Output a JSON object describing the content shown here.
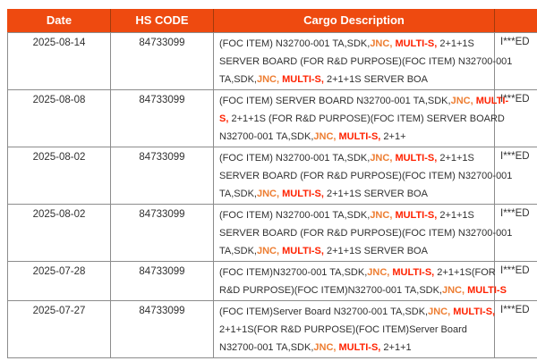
{
  "colors": {
    "header_bg": "#EE4A10",
    "header_text": "#FFFFFF",
    "header_separator": "#A23A0C",
    "border": "#8C8C8C",
    "body_text": "#303030",
    "highlight_orange": "#ED7D31",
    "highlight_red": "#FF2200"
  },
  "header": {
    "columns": [
      {
        "label": "Date"
      },
      {
        "label": "HS CODE"
      },
      {
        "label": "Cargo Description"
      },
      {
        "label": ""
      }
    ]
  },
  "rows": [
    {
      "date": "2025-08-14",
      "hs_code": "84733099",
      "description_lines": [
        [
          {
            "t": "(FOC ITEM) N32700-001 TA,SDK,",
            "c": "default"
          },
          {
            "t": "JNC,",
            "c": "orange"
          },
          {
            "t": " ",
            "c": "default"
          },
          {
            "t": "MULTI-S,",
            "c": "red"
          },
          {
            "t": " 2+1+1S",
            "c": "default"
          }
        ],
        [
          {
            "t": "SERVER BOARD (FOR R&D PURPOSE)(FOC ITEM) N32700-001",
            "c": "default"
          }
        ],
        [
          {
            "t": "TA,SDK,",
            "c": "default"
          },
          {
            "t": "JNC,",
            "c": "orange"
          },
          {
            "t": " ",
            "c": "default"
          },
          {
            "t": "MULTI-S,",
            "c": "red"
          },
          {
            "t": " 2+1+1S SERVER BOA",
            "c": "default"
          }
        ]
      ],
      "col4": "I***ED"
    },
    {
      "date": "2025-08-08",
      "hs_code": "84733099",
      "description_lines": [
        [
          {
            "t": "(FOC ITEM) SERVER BOARD N32700-001 TA,SDK,",
            "c": "default"
          },
          {
            "t": "JNC,",
            "c": "orange"
          },
          {
            "t": " ",
            "c": "default"
          },
          {
            "t": "MULTI-",
            "c": "red"
          }
        ],
        [
          {
            "t": "S,",
            "c": "red"
          },
          {
            "t": " 2+1+1S (FOR R&D PURPOSE)(FOC ITEM) SERVER BOARD",
            "c": "default"
          }
        ],
        [
          {
            "t": "N32700-001 TA,SDK,",
            "c": "default"
          },
          {
            "t": "JNC,",
            "c": "orange"
          },
          {
            "t": " ",
            "c": "default"
          },
          {
            "t": "MULTI-S,",
            "c": "red"
          },
          {
            "t": " 2+1+",
            "c": "default"
          }
        ]
      ],
      "col4": "I***ED"
    },
    {
      "date": "2025-08-02",
      "hs_code": "84733099",
      "description_lines": [
        [
          {
            "t": "(FOC ITEM) N32700-001 TA,SDK,",
            "c": "default"
          },
          {
            "t": "JNC,",
            "c": "orange"
          },
          {
            "t": " ",
            "c": "default"
          },
          {
            "t": "MULTI-S,",
            "c": "red"
          },
          {
            "t": " 2+1+1S",
            "c": "default"
          }
        ],
        [
          {
            "t": "SERVER BOARD (FOR R&D PURPOSE)(FOC ITEM) N32700-001",
            "c": "default"
          }
        ],
        [
          {
            "t": "TA,SDK,",
            "c": "default"
          },
          {
            "t": "JNC,",
            "c": "orange"
          },
          {
            "t": " ",
            "c": "default"
          },
          {
            "t": "MULTI-S,",
            "c": "red"
          },
          {
            "t": " 2+1+1S SERVER BOA",
            "c": "default"
          }
        ]
      ],
      "col4": "I***ED"
    },
    {
      "date": "2025-08-02",
      "hs_code": "84733099",
      "description_lines": [
        [
          {
            "t": "(FOC ITEM) N32700-001 TA,SDK,",
            "c": "default"
          },
          {
            "t": "JNC,",
            "c": "orange"
          },
          {
            "t": " ",
            "c": "default"
          },
          {
            "t": "MULTI-S,",
            "c": "red"
          },
          {
            "t": " 2+1+1S",
            "c": "default"
          }
        ],
        [
          {
            "t": "SERVER BOARD (FOR R&D PURPOSE)(FOC ITEM) N32700-001",
            "c": "default"
          }
        ],
        [
          {
            "t": "TA,SDK,",
            "c": "default"
          },
          {
            "t": "JNC,",
            "c": "orange"
          },
          {
            "t": " ",
            "c": "default"
          },
          {
            "t": "MULTI-S,",
            "c": "red"
          },
          {
            "t": " 2+1+1S SERVER BOA",
            "c": "default"
          }
        ]
      ],
      "col4": "I***ED"
    },
    {
      "date": "2025-07-28",
      "hs_code": "84733099",
      "description_lines": [
        [
          {
            "t": "(FOC ITEM)N32700-001 TA,SDK,",
            "c": "default"
          },
          {
            "t": "JNC,",
            "c": "orange"
          },
          {
            "t": " ",
            "c": "default"
          },
          {
            "t": "MULTI-S,",
            "c": "red"
          },
          {
            "t": " 2+1+1S(FOR",
            "c": "default"
          }
        ],
        [
          {
            "t": "R&D PURPOSE)(FOC ITEM)N32700-001 TA,SDK,",
            "c": "default"
          },
          {
            "t": "JNC,",
            "c": "orange"
          },
          {
            "t": " ",
            "c": "default"
          },
          {
            "t": "MULTI-S",
            "c": "red"
          }
        ]
      ],
      "col4": "I***ED"
    },
    {
      "date": "2025-07-27",
      "hs_code": "84733099",
      "description_lines": [
        [
          {
            "t": "(FOC ITEM)Server Board N32700-001 TA,SDK,",
            "c": "default"
          },
          {
            "t": "JNC,",
            "c": "orange"
          },
          {
            "t": " ",
            "c": "default"
          },
          {
            "t": "MULTI-S,",
            "c": "red"
          }
        ],
        [
          {
            "t": "2+1+1S(FOR R&D PURPOSE)(FOC ITEM)Server Board",
            "c": "default"
          }
        ],
        [
          {
            "t": "N32700-001 TA,SDK,",
            "c": "default"
          },
          {
            "t": "JNC,",
            "c": "orange"
          },
          {
            "t": " ",
            "c": "default"
          },
          {
            "t": "MULTI-S,",
            "c": "red"
          },
          {
            "t": " 2+1+1",
            "c": "default"
          }
        ]
      ],
      "col4": "I***ED"
    }
  ]
}
